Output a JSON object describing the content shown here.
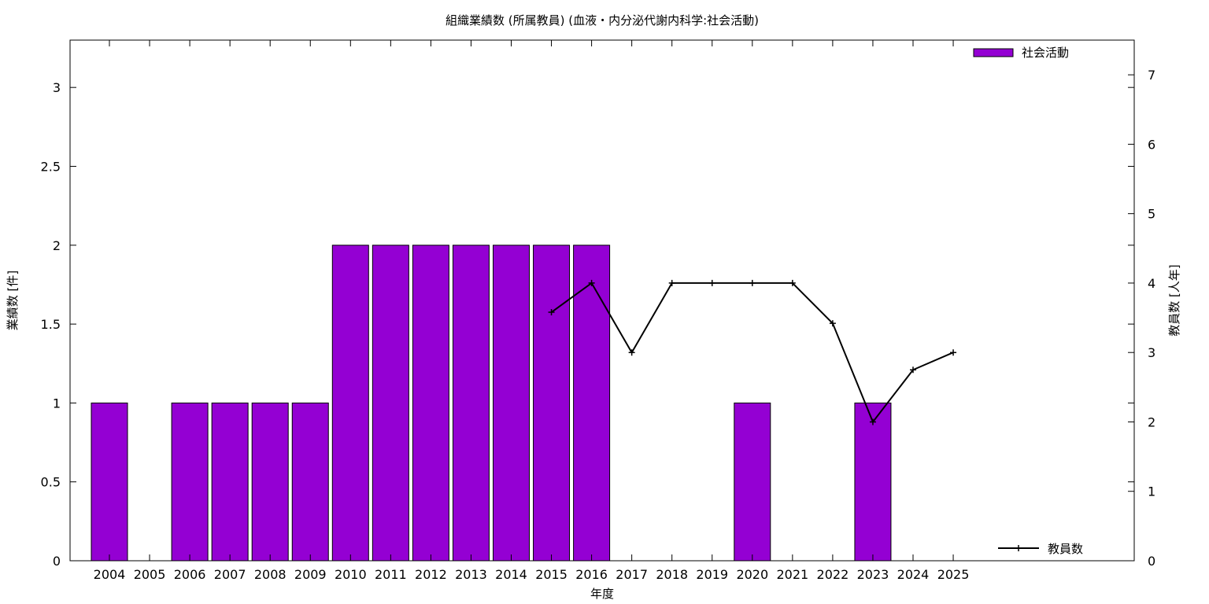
{
  "chart_data": {
    "type": "bar",
    "title": "組織業績数 (所属教員) (血液・内分泌代謝内科学:社会活動)",
    "xlabel": "年度",
    "ylabel": "業績数 [件]",
    "y2label": "教員数 [人年]",
    "categories": [
      "2004",
      "2005",
      "2006",
      "2007",
      "2008",
      "2009",
      "2010",
      "2011",
      "2012",
      "2013",
      "2014",
      "2015",
      "2016",
      "2017",
      "2018",
      "2019",
      "2020",
      "2021",
      "2022",
      "2023",
      "2024",
      "2025"
    ],
    "ylim": [
      0,
      3.3
    ],
    "y2lim": [
      0,
      7.5
    ],
    "yticks": [
      "0",
      "0.5",
      "1",
      "1.5",
      "2",
      "2.5",
      "3"
    ],
    "y2ticks": [
      "0",
      "1",
      "2",
      "3",
      "4",
      "5",
      "6",
      "7"
    ],
    "grid": false,
    "series": [
      {
        "name": "社会活動",
        "type": "bar",
        "axis": "left",
        "color": "#9400d3",
        "values": [
          1,
          0,
          1,
          1,
          1,
          1,
          2,
          2,
          2,
          2,
          2,
          2,
          2,
          0,
          0,
          0,
          1,
          0,
          0,
          1,
          0,
          0
        ]
      },
      {
        "name": "教員数",
        "type": "line",
        "axis": "right",
        "color": "#000000",
        "values": [
          null,
          null,
          null,
          null,
          null,
          null,
          null,
          null,
          null,
          null,
          null,
          3.58,
          4,
          3,
          4,
          4,
          4,
          4,
          3.42,
          2,
          2.75,
          3
        ]
      }
    ],
    "legend": {
      "bar_position": "top-right",
      "line_position": "bottom-right"
    }
  }
}
